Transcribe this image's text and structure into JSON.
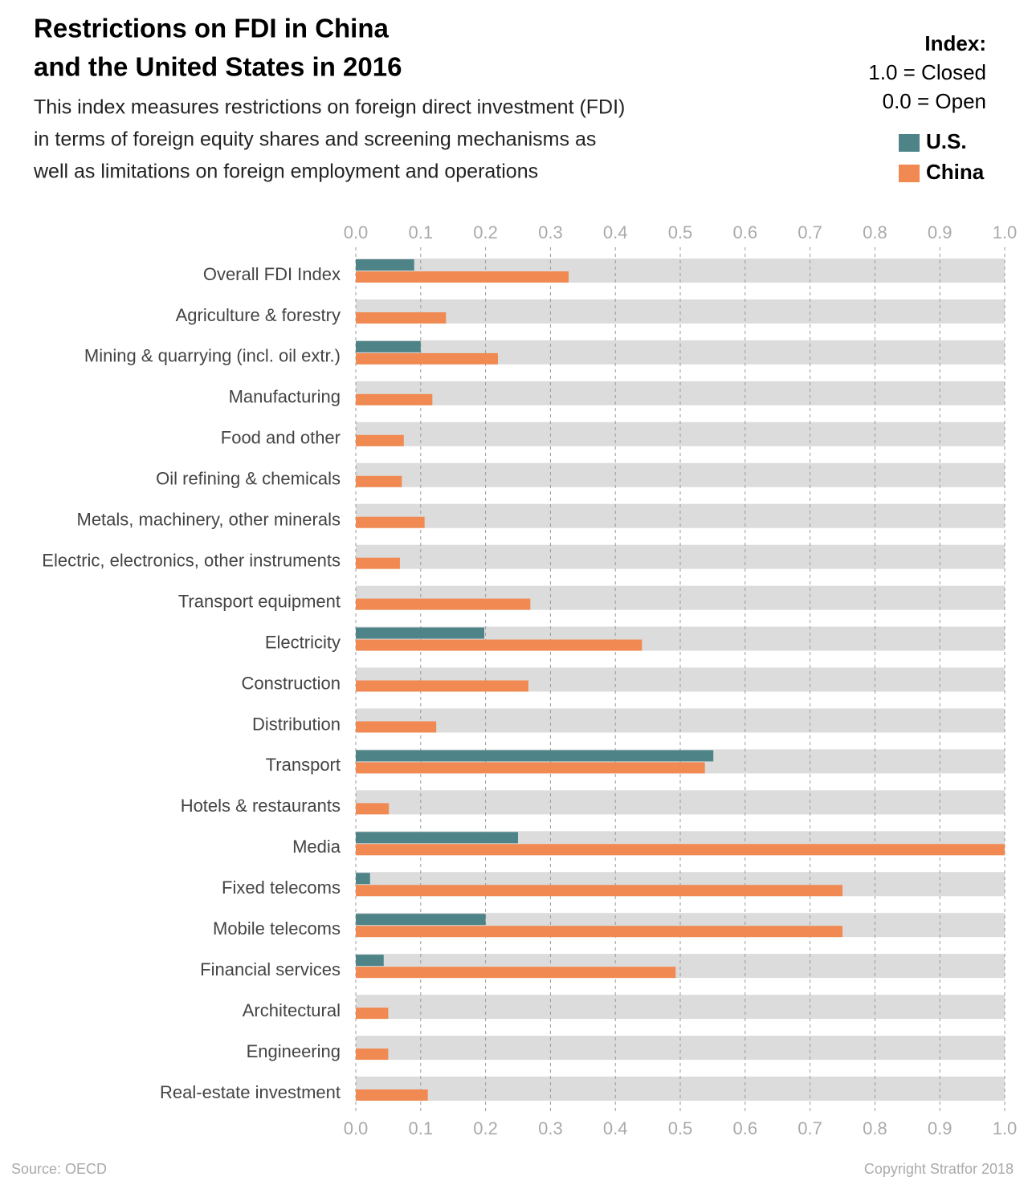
{
  "chart_data": {
    "type": "bar",
    "orientation": "horizontal",
    "title": [
      "Restrictions on FDI in China",
      "and the United States in 2016"
    ],
    "subtitle": [
      "This index measures restrictions on foreign direct investment (FDI)",
      "in terms of foreign equity shares and screening mechanisms as",
      "well as limitations on foreign employment and operations"
    ],
    "legend_title": [
      "Index:",
      "1.0 = Closed",
      "0.0 = Open"
    ],
    "source": "Source: OECD",
    "copyright": "Copyright Stratfor 2018",
    "categories": [
      "Overall FDI Index",
      "Agriculture & forestry",
      "Mining & quarrying (incl. oil extr.)",
      "Manufacturing",
      "Food and other",
      "Oil refining & chemicals",
      "Metals, machinery, other minerals",
      "Electric, electronics, other instruments",
      "Transport equipment",
      "Electricity",
      "Construction",
      "Distribution",
      "Transport",
      "Hotels & restaurants",
      "Media",
      "Fixed telecoms",
      "Mobile telecoms",
      "Financial services",
      "Architectural",
      "Engineering",
      "Real-estate investment"
    ],
    "series": [
      {
        "name": "U.S.",
        "color": "#4e8488",
        "values": [
          0.09,
          0,
          0.1,
          0,
          0,
          0,
          0,
          0,
          0,
          0.198,
          0,
          0,
          0.551,
          0,
          0.25,
          0.022,
          0.2,
          0.043,
          0,
          0,
          0
        ]
      },
      {
        "name": "China",
        "color": "#f08a52",
        "values": [
          0.328,
          0.139,
          0.219,
          0.118,
          0.074,
          0.071,
          0.106,
          0.068,
          0.269,
          0.441,
          0.266,
          0.124,
          0.538,
          0.051,
          1.0,
          0.75,
          0.75,
          0.493,
          0.05,
          0.05,
          0.111
        ]
      }
    ],
    "background_color": "#dcdcdc",
    "xlim": [
      0,
      1
    ],
    "xticks": [
      {
        "value": 0,
        "label": "0.0"
      },
      0.1,
      0.2,
      0.3,
      0.4,
      0.5,
      0.6,
      0.7,
      0.8,
      0.9,
      {
        "value": 1,
        "label": "1.0"
      }
    ],
    "grid": true
  }
}
